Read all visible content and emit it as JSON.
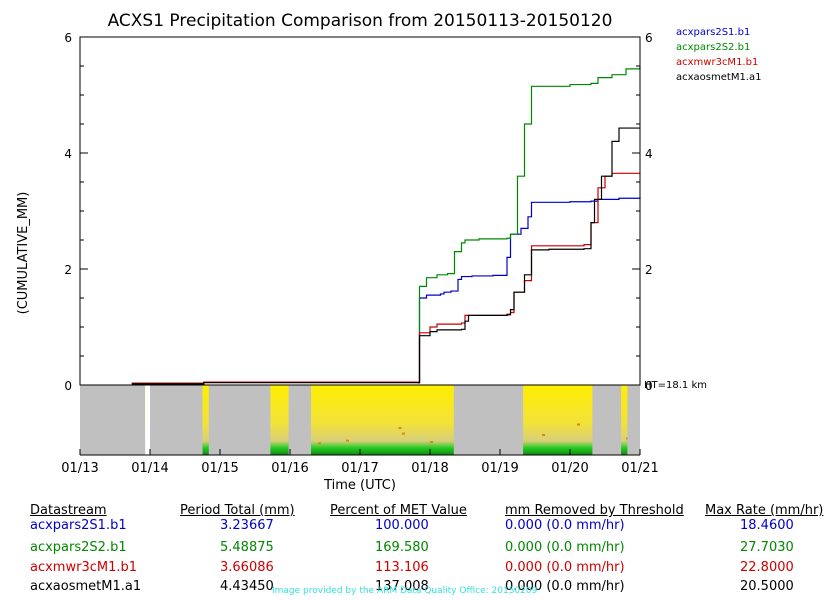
{
  "chart_data": {
    "type": "line",
    "title": "ACXS1 Precipitation Comparison from 20150113-20150120",
    "ylabel": "(CUMULATIVE_MM)",
    "xlabel": "Time (UTC)",
    "ylim": [
      0,
      6
    ],
    "yticks": [
      "0",
      "2",
      "4",
      "6"
    ],
    "xlim": [
      0,
      8
    ],
    "xticks": [
      "01/13",
      "01/14",
      "01/15",
      "01/16",
      "01/17",
      "01/18",
      "01/19",
      "01/20",
      "01/21"
    ],
    "ht_label": "HT=18.1 km",
    "legend_position": "top-right",
    "series": [
      {
        "name": "acxpars2S1.b1",
        "color": "#0000cc",
        "points": [
          [
            0.74,
            0.03
          ],
          [
            1.77,
            0.03
          ],
          [
            1.77,
            0.05
          ],
          [
            4.83,
            0.05
          ],
          [
            4.83,
            0.04
          ],
          [
            4.85,
            1.5
          ],
          [
            4.95,
            1.55
          ],
          [
            5.15,
            1.57
          ],
          [
            5.2,
            1.6
          ],
          [
            5.3,
            1.62
          ],
          [
            5.4,
            1.82
          ],
          [
            5.45,
            1.87
          ],
          [
            5.6,
            1.88
          ],
          [
            5.9,
            1.89
          ],
          [
            6.1,
            2.2
          ],
          [
            6.15,
            2.6
          ],
          [
            6.3,
            2.7
          ],
          [
            6.4,
            2.9
          ],
          [
            6.45,
            3.15
          ],
          [
            6.6,
            3.15
          ],
          [
            7.0,
            3.16
          ],
          [
            7.3,
            3.17
          ],
          [
            7.4,
            3.2
          ],
          [
            7.7,
            3.22
          ],
          [
            8.0,
            3.24
          ]
        ]
      },
      {
        "name": "acxpars2S2.b1",
        "color": "#008800",
        "points": [
          [
            0.74,
            0.03
          ],
          [
            1.77,
            0.03
          ],
          [
            1.77,
            0.05
          ],
          [
            4.83,
            0.05
          ],
          [
            4.83,
            0.04
          ],
          [
            4.85,
            1.7
          ],
          [
            4.95,
            1.85
          ],
          [
            5.1,
            1.9
          ],
          [
            5.25,
            1.92
          ],
          [
            5.35,
            2.3
          ],
          [
            5.45,
            2.45
          ],
          [
            5.5,
            2.5
          ],
          [
            5.7,
            2.52
          ],
          [
            6.1,
            2.53
          ],
          [
            6.15,
            2.6
          ],
          [
            6.25,
            3.6
          ],
          [
            6.35,
            4.5
          ],
          [
            6.45,
            5.15
          ],
          [
            6.7,
            5.15
          ],
          [
            7.0,
            5.18
          ],
          [
            7.3,
            5.2
          ],
          [
            7.4,
            5.3
          ],
          [
            7.6,
            5.35
          ],
          [
            7.8,
            5.45
          ],
          [
            8.0,
            5.49
          ]
        ]
      },
      {
        "name": "acxmwr3cM1.b1",
        "color": "#cc0000",
        "points": [
          [
            0.74,
            0.03
          ],
          [
            1.77,
            0.03
          ],
          [
            1.77,
            0.05
          ],
          [
            4.83,
            0.05
          ],
          [
            4.83,
            0.04
          ],
          [
            4.85,
            0.9
          ],
          [
            5.0,
            1.0
          ],
          [
            5.1,
            1.05
          ],
          [
            5.45,
            1.07
          ],
          [
            5.5,
            1.2
          ],
          [
            6.1,
            1.22
          ],
          [
            6.15,
            1.25
          ],
          [
            6.2,
            1.6
          ],
          [
            6.35,
            1.8
          ],
          [
            6.45,
            2.4
          ],
          [
            6.6,
            2.4
          ],
          [
            7.2,
            2.42
          ],
          [
            7.3,
            2.8
          ],
          [
            7.4,
            3.4
          ],
          [
            7.5,
            3.6
          ],
          [
            7.6,
            3.65
          ],
          [
            8.0,
            3.66
          ]
        ]
      },
      {
        "name": "acxaosmetM1.a1",
        "color": "#000000",
        "points": [
          [
            0.74,
            0.02
          ],
          [
            1.77,
            0.02
          ],
          [
            1.77,
            0.04
          ],
          [
            4.83,
            0.04
          ],
          [
            4.85,
            0.85
          ],
          [
            5.0,
            0.92
          ],
          [
            5.1,
            0.95
          ],
          [
            5.45,
            0.96
          ],
          [
            5.5,
            1.1
          ],
          [
            5.55,
            1.2
          ],
          [
            6.1,
            1.21
          ],
          [
            6.15,
            1.3
          ],
          [
            6.2,
            1.6
          ],
          [
            6.35,
            1.9
          ],
          [
            6.45,
            2.33
          ],
          [
            6.7,
            2.34
          ],
          [
            7.2,
            2.35
          ],
          [
            7.3,
            2.8
          ],
          [
            7.35,
            3.2
          ],
          [
            7.45,
            3.6
          ],
          [
            7.6,
            4.2
          ],
          [
            7.7,
            4.43
          ],
          [
            8.0,
            4.43
          ]
        ]
      }
    ],
    "table": {
      "headers": [
        "Datastream",
        "Period Total (mm)",
        "Percent of MET Value",
        "mm Removed by Threshold",
        "Max Rate (mm/hr)"
      ],
      "rows": [
        {
          "name": "acxpars2S1.b1",
          "color": "#0000cc",
          "total": "3.23667",
          "percent": "100.000",
          "removed": "0.000 (0.0 mm/hr)",
          "max": "18.4600"
        },
        {
          "name": "acxpars2S2.b1",
          "color": "#008800",
          "total": "5.48875",
          "percent": "169.580",
          "removed": "0.000 (0.0 mm/hr)",
          "max": "27.7030"
        },
        {
          "name": "acxmwr3cM1.b1",
          "color": "#cc0000",
          "total": "3.66086",
          "percent": "113.106",
          "removed": "0.000 (0.0 mm/hr)",
          "max": "22.8000"
        },
        {
          "name": "acxaosmetM1.a1",
          "color": "#000000",
          "total": "4.43450",
          "percent": "137.008",
          "removed": "0.000 (0.0 mm/hr)",
          "max": "20.5000"
        }
      ]
    },
    "radar_strip": {
      "gray_spans": [
        [
          0.0,
          0.93
        ],
        [
          1.0,
          1.75
        ],
        [
          1.84,
          2.72
        ],
        [
          2.98,
          3.3
        ],
        [
          5.34,
          6.33
        ],
        [
          7.32,
          7.73
        ],
        [
          7.82,
          8.0
        ]
      ],
      "white_spans": [
        [
          0.93,
          1.0
        ]
      ],
      "colors": {
        "gray": "#c0c0c0",
        "yellow": "#ffee00",
        "green": "#22cc22",
        "orange": "#dd8800"
      }
    }
  },
  "credit": "Image provided by the ARM Data Quality Office: 20150209"
}
